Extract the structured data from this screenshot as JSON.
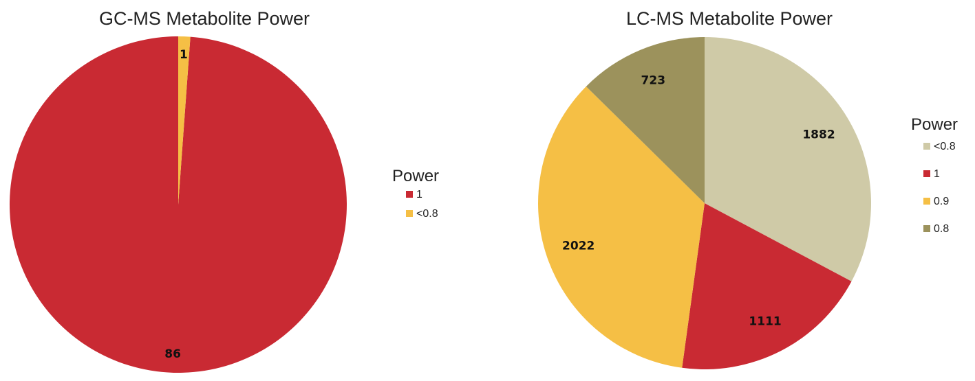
{
  "chart_data": [
    {
      "type": "pie",
      "title": "GC-MS Metabolite Power",
      "legend_title": "Power",
      "legend_position": "right",
      "start_angle_deg": 0,
      "direction": "counterclockwise",
      "slices": [
        {
          "label": "1",
          "value": 86,
          "color": "#c92a33"
        },
        {
          "label": "<0.8",
          "value": 1,
          "color": "#f5bf45"
        }
      ],
      "legend": [
        {
          "label": "1",
          "color": "#c92a33"
        },
        {
          "label": "<0.8",
          "color": "#f5bf45"
        }
      ]
    },
    {
      "type": "pie",
      "title": "LC-MS Metabolite Power",
      "legend_title": "Power",
      "legend_position": "right",
      "start_angle_deg": 0,
      "direction": "clockwise",
      "slices": [
        {
          "label": "<0.8",
          "value": 1882,
          "color": "#cfcaa7"
        },
        {
          "label": "1",
          "value": 1111,
          "color": "#c92a33"
        },
        {
          "label": "0.9",
          "value": 2022,
          "color": "#f5bf45"
        },
        {
          "label": "0.8",
          "value": 723,
          "color": "#9c925c"
        }
      ],
      "legend": [
        {
          "label": "<0.8",
          "color": "#cfcaa7"
        },
        {
          "label": "1",
          "color": "#c92a33"
        },
        {
          "label": "0.9",
          "color": "#f5bf45"
        },
        {
          "label": "0.8",
          "color": "#9c925c"
        }
      ]
    }
  ]
}
